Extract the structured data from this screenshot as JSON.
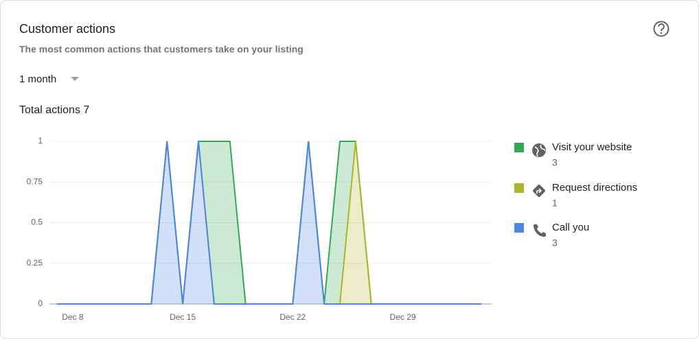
{
  "header": {
    "title": "Customer actions",
    "subtitle": "The most common actions that customers take on your listing",
    "period": "1 month",
    "total": "Total actions 7"
  },
  "chart_data": {
    "type": "stacked-area",
    "categories": [
      null,
      "Dec 8",
      null,
      null,
      null,
      null,
      null,
      null,
      "Dec 15",
      null,
      null,
      null,
      null,
      null,
      null,
      "Dec 22",
      null,
      null,
      null,
      null,
      null,
      null,
      "Dec 29",
      null,
      null,
      null,
      null,
      null
    ],
    "series": [
      {
        "name": "Visit your website",
        "color": "#34a853",
        "total": 3,
        "values": [
          0,
          0,
          0,
          0,
          0,
          0,
          0,
          0,
          0,
          0,
          1,
          1,
          0,
          0,
          0,
          0,
          0,
          0,
          1,
          0,
          0,
          0,
          0,
          0,
          0,
          0,
          0,
          0
        ]
      },
      {
        "name": "Request directions",
        "color": "#afb42b",
        "total": 1,
        "values": [
          0,
          0,
          0,
          0,
          0,
          0,
          0,
          0,
          0,
          0,
          0,
          0,
          0,
          0,
          0,
          0,
          0,
          0,
          0,
          1,
          0,
          0,
          0,
          0,
          0,
          0,
          0,
          0
        ]
      },
      {
        "name": "Call you",
        "color": "#4a86e8",
        "total": 3,
        "values": [
          0,
          0,
          0,
          0,
          0,
          0,
          0,
          1,
          0,
          1,
          0,
          0,
          0,
          0,
          0,
          0,
          1,
          0,
          0,
          0,
          0,
          0,
          0,
          0,
          0,
          0,
          0,
          0
        ]
      }
    ],
    "ylim": [
      0,
      1
    ],
    "yticks": [
      0,
      0.25,
      0.5,
      0.75,
      1
    ],
    "grid": true
  }
}
